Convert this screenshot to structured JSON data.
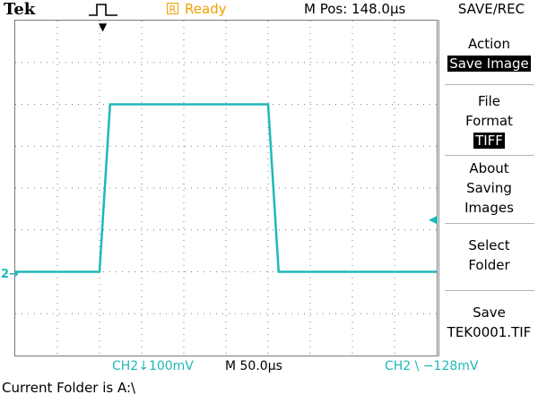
{
  "header": {
    "brand": "Tek",
    "trigger_icon": "pulse-trigger-icon",
    "status_box": "R",
    "status": "Ready",
    "position": "M Pos: 148.0µs"
  },
  "side_menu": {
    "title": "SAVE/REC",
    "items": [
      {
        "lines": [
          "Action"
        ],
        "value": "Save Image"
      },
      {
        "lines": [
          "File",
          "Format"
        ],
        "value": "TIFF"
      },
      {
        "lines": [
          "About",
          "Saving",
          "Images"
        ]
      },
      {
        "lines": [
          "Select",
          "Folder"
        ]
      },
      {
        "lines": [
          "Save"
        ],
        "value": "TEK0001.TIF"
      }
    ]
  },
  "bottom": {
    "channel_scale": "CH2↓100mV",
    "timebase": "M 50.0µs",
    "trigger_setting": "CH2 \\ −128mV"
  },
  "channel_marker": "2→",
  "folder_line": "Current Folder is A:\\",
  "colors": {
    "trace": "#20b8b8",
    "ready": "#f0a000",
    "grid": "#7a7a7a"
  },
  "chart_data": {
    "type": "line",
    "series": [
      {
        "x_div": [
          0,
          2.0,
          2.25,
          6.0,
          6.25,
          10
        ],
        "y_div": [
          0,
          0,
          4.0,
          4.0,
          0,
          0
        ]
      }
    ],
    "x_divisions": 10,
    "y_divisions": 8,
    "grid": true
  }
}
